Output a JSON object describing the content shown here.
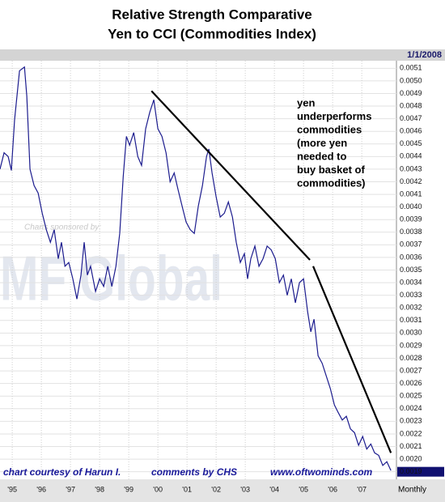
{
  "chart_data": {
    "type": "line",
    "title": [
      "Relative Strength Comparative",
      "Yen to CCI (Commodities Index)"
    ],
    "date_label": "1/1/2008",
    "period_label": "Monthly",
    "watermark": {
      "sponsor": "Charts sponsored by:",
      "logo": "MF Global"
    },
    "annotation": [
      "yen",
      "underperforms",
      "commodities",
      "(more yen",
      "needed to",
      "buy basket of",
      "commodities)"
    ],
    "footer": [
      "chart courtesy of Harun I.",
      "comments by CHS",
      "www.oftwominds.com"
    ],
    "grid": true,
    "xlim": [
      1994.58,
      2008.19
    ],
    "xticks": [
      {
        "value": 1995,
        "label": "'95"
      },
      {
        "value": 1996,
        "label": "'96"
      },
      {
        "value": 1997,
        "label": "'97"
      },
      {
        "value": 1998,
        "label": "'98"
      },
      {
        "value": 1999,
        "label": "'99"
      },
      {
        "value": 2000,
        "label": "'00"
      },
      {
        "value": 2001,
        "label": "'01"
      },
      {
        "value": 2002,
        "label": "'02"
      },
      {
        "value": 2003,
        "label": "'03"
      },
      {
        "value": 2004,
        "label": "'04"
      },
      {
        "value": 2005,
        "label": "'05"
      },
      {
        "value": 2006,
        "label": "'06"
      },
      {
        "value": 2007,
        "label": "'07"
      }
    ],
    "ylim": [
      0.00184,
      0.00516
    ],
    "yticks": [
      0.0019,
      {
        "value": 0.002,
        "label": "0.0020"
      },
      0.0021,
      0.0022,
      0.0023,
      0.0024,
      0.0025,
      0.0026,
      0.0027,
      0.0028,
      0.0029,
      {
        "value": 0.003,
        "label": "0.0030"
      },
      0.0031,
      0.0032,
      0.0033,
      0.0034,
      0.0035,
      0.0036,
      0.0037,
      0.0038,
      0.0039,
      {
        "value": 0.004,
        "label": "0.0040"
      },
      0.0041,
      0.0042,
      0.0043,
      0.0044,
      0.0045,
      0.0046,
      0.0047,
      0.0048,
      0.0049,
      {
        "value": 0.005,
        "label": "0.0050"
      },
      0.0051
    ],
    "x": [
      1994.58,
      1994.72,
      1994.86,
      1994.97,
      1995.08,
      1995.25,
      1995.42,
      1995.5,
      1995.61,
      1995.75,
      1995.89,
      1996.03,
      1996.17,
      1996.31,
      1996.44,
      1996.58,
      1996.69,
      1996.81,
      1996.94,
      1997.08,
      1997.22,
      1997.36,
      1997.47,
      1997.58,
      1997.69,
      1997.86,
      1998.0,
      1998.14,
      1998.28,
      1998.42,
      1998.56,
      1998.69,
      1998.81,
      1998.92,
      1999.03,
      1999.17,
      1999.31,
      1999.44,
      1999.58,
      1999.72,
      1999.86,
      2000.0,
      2000.14,
      2000.28,
      2000.42,
      2000.56,
      2000.69,
      2000.86,
      2000.97,
      2001.11,
      2001.25,
      2001.39,
      2001.53,
      2001.67,
      2001.75,
      2001.86,
      2002.0,
      2002.14,
      2002.28,
      2002.42,
      2002.56,
      2002.69,
      2002.83,
      2002.97,
      2003.08,
      2003.19,
      2003.33,
      2003.47,
      2003.61,
      2003.75,
      2003.89,
      2004.03,
      2004.17,
      2004.31,
      2004.44,
      2004.58,
      2004.72,
      2004.86,
      2005.0,
      2005.14,
      2005.25,
      2005.36,
      2005.5,
      2005.64,
      2005.78,
      2005.92,
      2006.06,
      2006.19,
      2006.33,
      2006.47,
      2006.61,
      2006.75,
      2006.89,
      2007.03,
      2007.17,
      2007.31,
      2007.44,
      2007.58,
      2007.72,
      2007.86,
      2008.0
    ],
    "series": [
      {
        "name": "Yen/CCI",
        "color": "#1c1c8e",
        "values": [
          0.0043,
          0.00443,
          0.0044,
          0.00429,
          0.00469,
          0.00508,
          0.00511,
          0.00488,
          0.0043,
          0.00417,
          0.00411,
          0.00395,
          0.00382,
          0.00372,
          0.00382,
          0.00359,
          0.00372,
          0.00353,
          0.00356,
          0.00343,
          0.00327,
          0.00346,
          0.00372,
          0.00346,
          0.00353,
          0.00333,
          0.00343,
          0.00337,
          0.00353,
          0.00337,
          0.00353,
          0.00379,
          0.00424,
          0.00456,
          0.00449,
          0.00459,
          0.0044,
          0.00433,
          0.00462,
          0.00475,
          0.00485,
          0.00462,
          0.00456,
          0.00443,
          0.0042,
          0.00427,
          0.00414,
          0.00398,
          0.00388,
          0.00382,
          0.00379,
          0.00401,
          0.00417,
          0.0044,
          0.00446,
          0.00427,
          0.00408,
          0.00392,
          0.00395,
          0.00404,
          0.00392,
          0.00372,
          0.00356,
          0.00363,
          0.00343,
          0.00359,
          0.00369,
          0.00353,
          0.00359,
          0.00369,
          0.00366,
          0.00359,
          0.0034,
          0.00346,
          0.0033,
          0.00343,
          0.00324,
          0.0034,
          0.00343,
          0.00317,
          0.00301,
          0.00311,
          0.00282,
          0.00276,
          0.00266,
          0.00256,
          0.00243,
          0.00237,
          0.00231,
          0.00234,
          0.00224,
          0.00221,
          0.00211,
          0.00218,
          0.00208,
          0.00212,
          0.00205,
          0.00203,
          0.00195,
          0.00198,
          0.00191
        ]
      }
    ],
    "trend_lines": [
      {
        "color": "#000000",
        "x": [
          1999.78,
          2005.22
        ],
        "values": [
          0.00492,
          0.00358
        ]
      },
      {
        "color": "#000000",
        "x": [
          2005.33,
          2008.0
        ],
        "values": [
          0.00353,
          0.00205
        ]
      }
    ]
  }
}
